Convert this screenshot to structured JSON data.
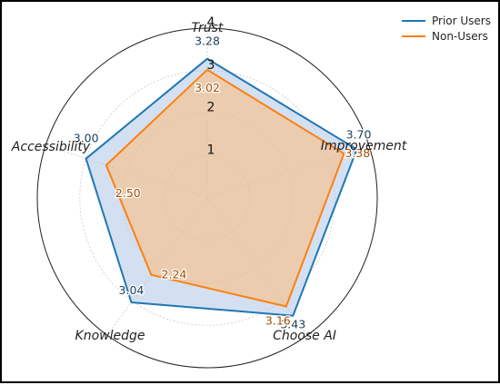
{
  "chart_data": {
    "type": "radar",
    "axes": [
      "Trust",
      "Improvement",
      "Choose AI",
      "Knowledge",
      "Accessibility"
    ],
    "radial_ticks": [
      "1",
      "2",
      "3",
      "4"
    ],
    "rlim": [
      0,
      4
    ],
    "grid": true,
    "legend_position": "top-right",
    "series": [
      {
        "name": "Prior Users",
        "color": "#1f77b4",
        "fill": "#aec7e8",
        "values": [
          3.28,
          3.7,
          3.43,
          3.04,
          3.0
        ],
        "labels": [
          "3.28",
          "3.70",
          "3.43",
          "3.04",
          "3.00"
        ]
      },
      {
        "name": "Non-Users",
        "color": "#ff7f0e",
        "fill": "#ffbb78",
        "values": [
          3.02,
          3.38,
          3.16,
          2.24,
          2.5
        ],
        "labels": [
          "3.02",
          "3.38",
          "3.16",
          "2.24",
          "2.50"
        ]
      }
    ]
  }
}
